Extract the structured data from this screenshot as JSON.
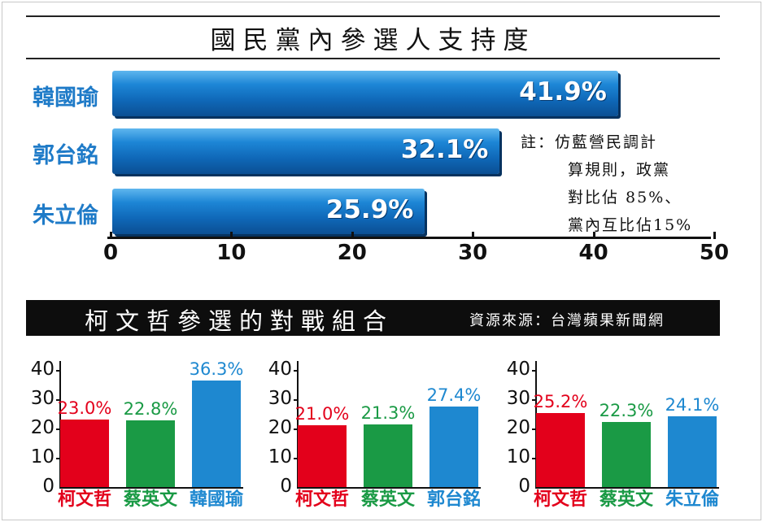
{
  "top_chart": {
    "title": "國民黨內參選人支持度",
    "ticks": [
      "0",
      "10",
      "20",
      "30",
      "40",
      "50"
    ],
    "note_lines": [
      "註：仿藍營民調計",
      "算規則，政黨",
      "對比佔 85%、",
      "黨內互比佔15%"
    ]
  },
  "bottom_section": {
    "title": "柯文哲參選的對戰組合",
    "source": "資源來源：台灣蘋果新聞網",
    "yticks": [
      "40",
      "30",
      "20",
      "10",
      "0"
    ]
  },
  "colors": {
    "red": "#e3001b",
    "green": "#1a9a45",
    "blue": "#1e88d0",
    "label_blue": "#1f7bc8"
  },
  "chart_data": [
    {
      "type": "bar",
      "orientation": "horizontal",
      "title": "國民黨內參選人支持度",
      "categories": [
        "韓國瑜",
        "郭台銘",
        "朱立倫"
      ],
      "values": [
        41.9,
        32.1,
        25.9
      ],
      "value_labels": [
        "41.9%",
        "32.1%",
        "25.9%"
      ],
      "xlim": [
        0,
        50
      ],
      "xticks": [
        0,
        10,
        20,
        30,
        40,
        50
      ]
    },
    {
      "type": "bar",
      "categories": [
        "柯文哲",
        "蔡英文",
        "韓國瑜"
      ],
      "values": [
        23.0,
        22.8,
        36.3
      ],
      "value_labels": [
        "23.0%",
        "22.8%",
        "36.3%"
      ],
      "colors": [
        "#e3001b",
        "#1a9a45",
        "#1e88d0"
      ],
      "ylim": [
        0,
        40
      ]
    },
    {
      "type": "bar",
      "categories": [
        "柯文哲",
        "蔡英文",
        "郭台銘"
      ],
      "values": [
        21.0,
        21.3,
        27.4
      ],
      "value_labels": [
        "21.0%",
        "21.3%",
        "27.4%"
      ],
      "colors": [
        "#e3001b",
        "#1a9a45",
        "#1e88d0"
      ],
      "ylim": [
        0,
        40
      ]
    },
    {
      "type": "bar",
      "categories": [
        "柯文哲",
        "蔡英文",
        "朱立倫"
      ],
      "values": [
        25.2,
        22.3,
        24.1
      ],
      "value_labels": [
        "25.2%",
        "22.3%",
        "24.1%"
      ],
      "colors": [
        "#e3001b",
        "#1a9a45",
        "#1e88d0"
      ],
      "ylim": [
        0,
        40
      ]
    }
  ]
}
